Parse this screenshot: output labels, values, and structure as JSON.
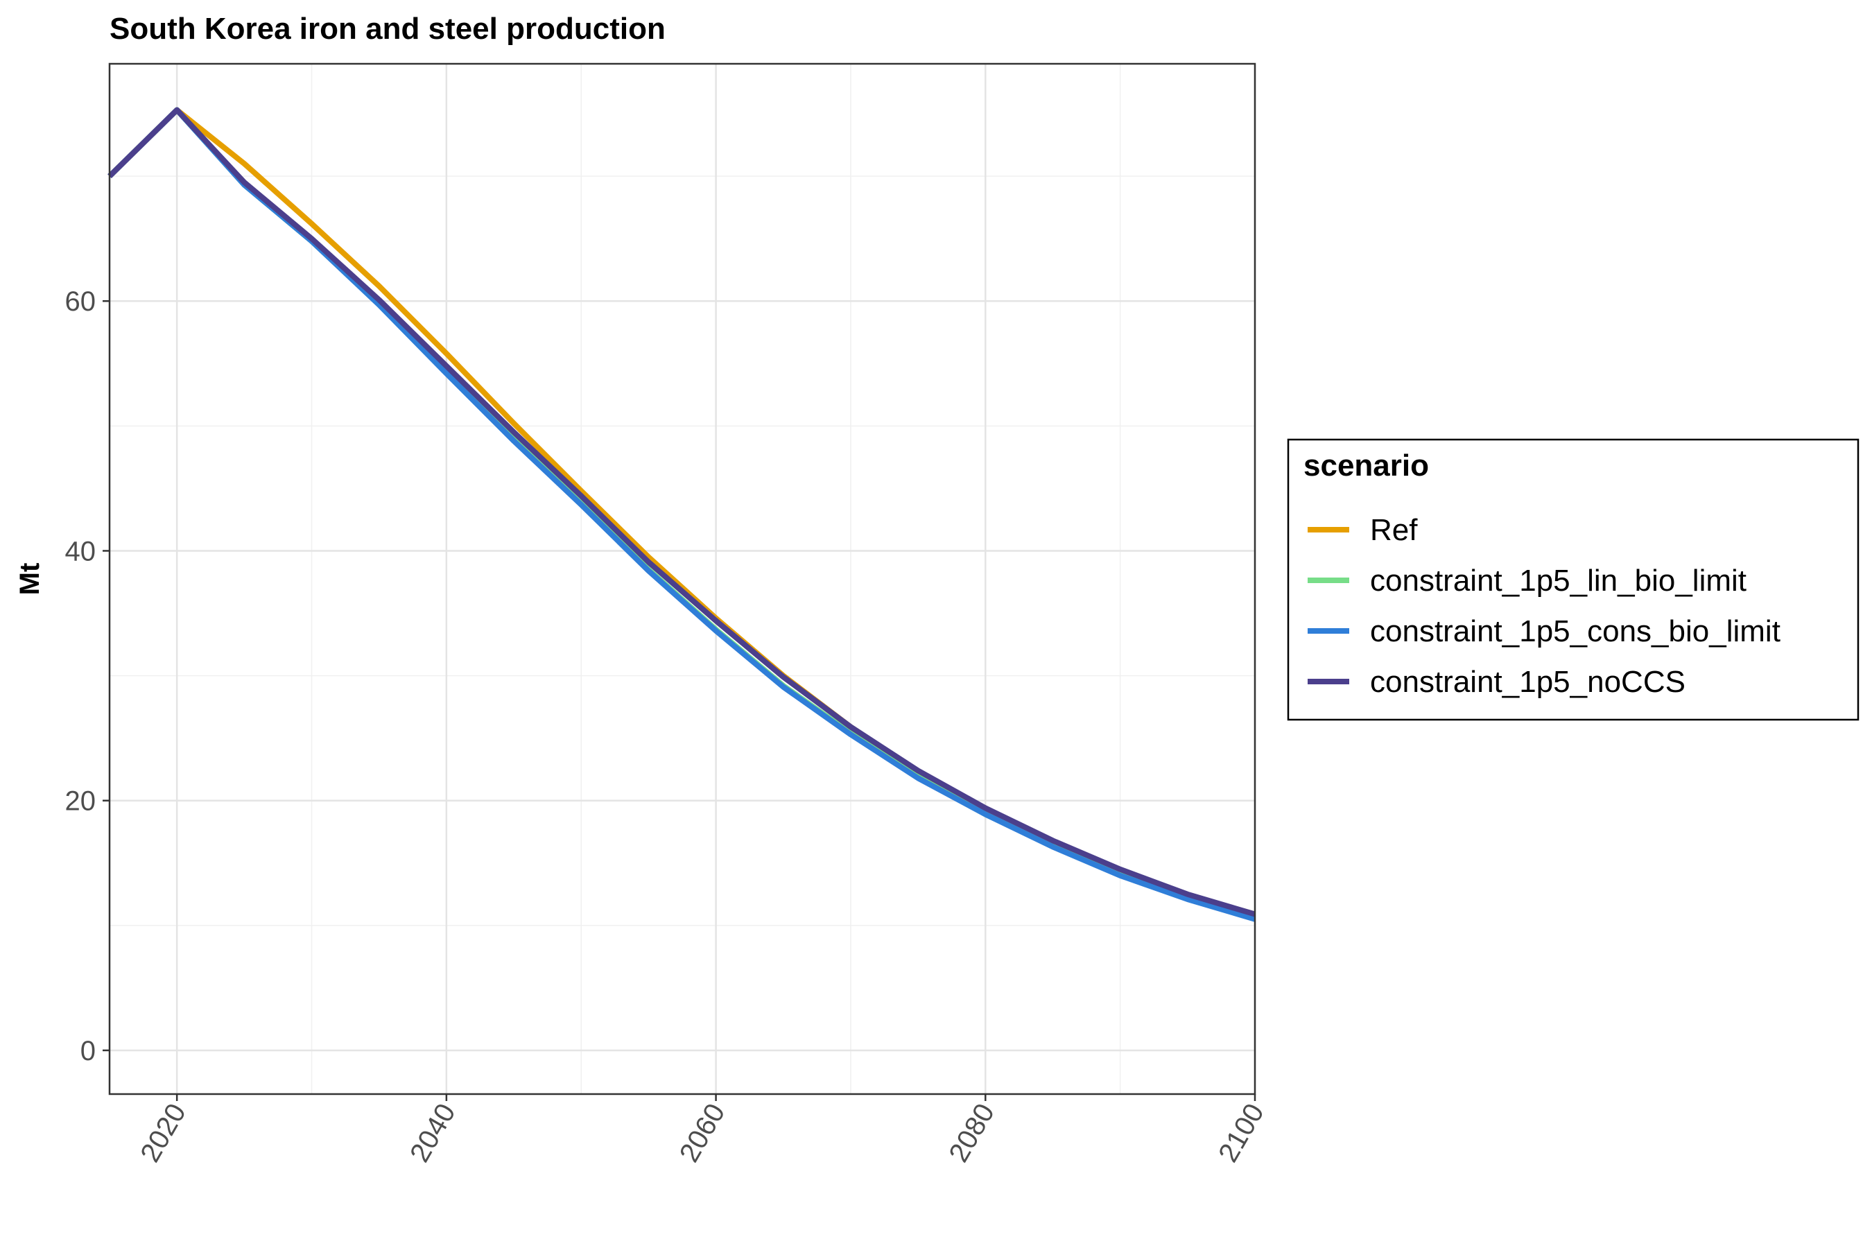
{
  "chart_data": {
    "type": "line",
    "title": "South Korea  iron and steel production",
    "xlabel": "",
    "ylabel": "Mt",
    "xlim": [
      2015,
      2100
    ],
    "ylim": [
      -3.5,
      79
    ],
    "x_ticks": [
      "2020",
      "2040",
      "2060",
      "2080",
      "2100"
    ],
    "y_ticks": [
      "0",
      "20",
      "40",
      "60"
    ],
    "grid": true,
    "legend": {
      "title": "scenario",
      "position": "right"
    },
    "x": [
      2015,
      2020,
      2025,
      2030,
      2035,
      2040,
      2045,
      2050,
      2055,
      2060,
      2065,
      2070,
      2075,
      2080,
      2085,
      2090,
      2095,
      2100
    ],
    "series": [
      {
        "name": "Ref",
        "color": "#E69F00",
        "values": [
          70,
          75.3,
          71.0,
          66.2,
          61.2,
          55.8,
          50.2,
          44.8,
          39.5,
          34.6,
          30.0,
          25.9,
          22.3,
          19.3,
          16.6,
          14.3,
          12.4,
          10.9
        ]
      },
      {
        "name": "constraint_1p5_lin_bio_limit",
        "color": "#77DD88",
        "values": [
          70,
          75.3,
          69.3,
          64.8,
          59.8,
          54.3,
          48.9,
          43.8,
          38.5,
          33.7,
          29.2,
          25.4,
          21.9,
          18.9,
          16.4,
          14.1,
          12.2,
          10.6
        ]
      },
      {
        "name": "constraint_1p5_cons_bio_limit",
        "color": "#2F7ED8",
        "values": [
          70,
          75.3,
          69.3,
          64.8,
          59.7,
          54.2,
          48.8,
          43.7,
          38.4,
          33.6,
          29.1,
          25.3,
          21.8,
          18.9,
          16.3,
          14.0,
          12.1,
          10.5
        ]
      },
      {
        "name": "constraint_1p5_noCCS",
        "color": "#4B3F8C",
        "values": [
          70,
          75.3,
          69.5,
          65.0,
          60.1,
          54.8,
          49.5,
          44.4,
          39.1,
          34.4,
          29.9,
          25.9,
          22.4,
          19.4,
          16.8,
          14.5,
          12.5,
          10.9
        ]
      }
    ]
  }
}
